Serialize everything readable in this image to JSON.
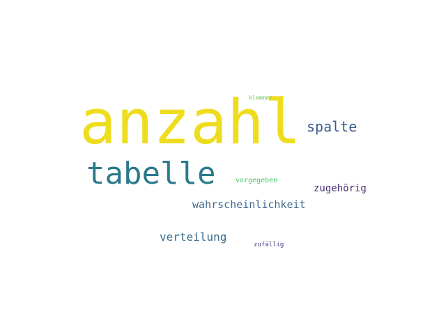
{
  "words": [
    {
      "text": "anzahl",
      "color": "#eedd1e"
    },
    {
      "text": "tabelle",
      "color": "#2a7a8c"
    },
    {
      "text": "spalte",
      "color": "#3b5d8f"
    },
    {
      "text": "wahrscheinlichkeit",
      "color": "#3f6b94"
    },
    {
      "text": "verteilung",
      "color": "#3a6e8e"
    },
    {
      "text": "zugehörig",
      "color": "#4b2b73"
    },
    {
      "text": "vorgegeben",
      "color": "#4fc06a"
    },
    {
      "text": "zufällig",
      "color": "#4a3a8c"
    },
    {
      "text": "klammer",
      "color": "#6cc85a"
    }
  ]
}
